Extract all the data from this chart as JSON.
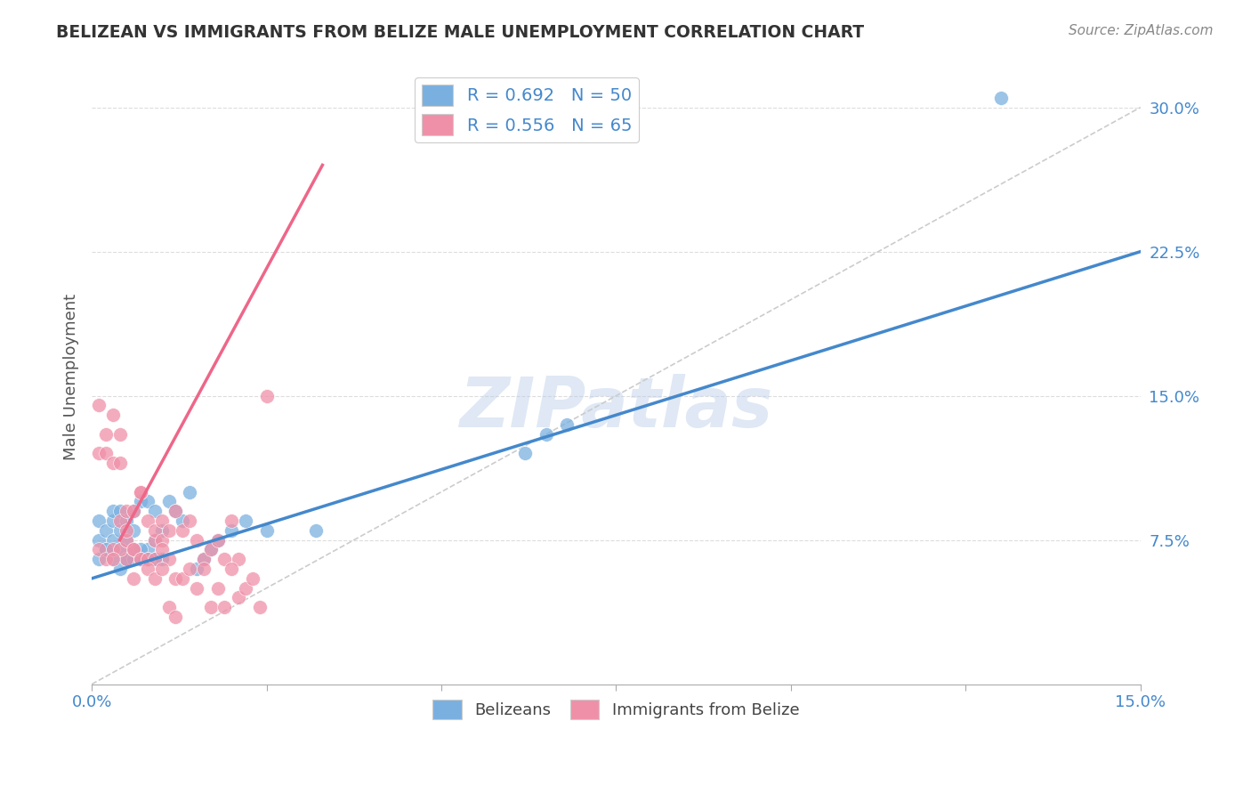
{
  "title": "BELIZEAN VS IMMIGRANTS FROM BELIZE MALE UNEMPLOYMENT CORRELATION CHART",
  "source": "Source: ZipAtlas.com",
  "ylabel": "Male Unemployment",
  "xlim": [
    0.0,
    0.15
  ],
  "ylim": [
    0.0,
    0.32
  ],
  "xtick_positions": [
    0.0,
    0.025,
    0.05,
    0.075,
    0.1,
    0.125,
    0.15
  ],
  "xtick_labels": [
    "0.0%",
    "",
    "",
    "",
    "",
    "",
    "15.0%"
  ],
  "ytick_positions": [
    0.075,
    0.15,
    0.225,
    0.3
  ],
  "ytick_labels": [
    "7.5%",
    "15.0%",
    "22.5%",
    "30.0%"
  ],
  "legend_entry_blue": "R = 0.692   N = 50",
  "legend_entry_pink": "R = 0.556   N = 65",
  "watermark": "ZIPatlas",
  "belizean_color": "#7ab0e0",
  "immigrant_color": "#f090a8",
  "belizean_line_color": "#4488cc",
  "immigrant_line_color": "#ee6688",
  "diagonal_color": "#cccccc",
  "grid_color": "#dddddd",
  "belizean_line_x0": 0.0,
  "belizean_line_y0": 0.055,
  "belizean_line_x1": 0.15,
  "belizean_line_y1": 0.225,
  "immigrant_line_x0": 0.004,
  "immigrant_line_y0": 0.075,
  "immigrant_line_x1": 0.033,
  "immigrant_line_y1": 0.27,
  "belizean_scatter_x": [
    0.001,
    0.001,
    0.002,
    0.002,
    0.003,
    0.003,
    0.003,
    0.004,
    0.004,
    0.004,
    0.005,
    0.005,
    0.005,
    0.006,
    0.006,
    0.006,
    0.007,
    0.007,
    0.008,
    0.008,
    0.009,
    0.009,
    0.009,
    0.01,
    0.011,
    0.012,
    0.013,
    0.014,
    0.015,
    0.016,
    0.017,
    0.018,
    0.02,
    0.022,
    0.025,
    0.032,
    0.062,
    0.065,
    0.068,
    0.001,
    0.002,
    0.003,
    0.004,
    0.005,
    0.006,
    0.007,
    0.008,
    0.009,
    0.01,
    0.13
  ],
  "belizean_scatter_y": [
    0.075,
    0.085,
    0.07,
    0.08,
    0.075,
    0.085,
    0.09,
    0.07,
    0.08,
    0.09,
    0.065,
    0.075,
    0.085,
    0.07,
    0.08,
    0.09,
    0.065,
    0.095,
    0.07,
    0.095,
    0.065,
    0.075,
    0.09,
    0.08,
    0.095,
    0.09,
    0.085,
    0.1,
    0.06,
    0.065,
    0.07,
    0.075,
    0.08,
    0.085,
    0.08,
    0.08,
    0.12,
    0.13,
    0.135,
    0.065,
    0.07,
    0.065,
    0.06,
    0.065,
    0.065,
    0.07,
    0.065,
    0.065,
    0.065,
    0.305
  ],
  "immigrant_scatter_x": [
    0.001,
    0.001,
    0.002,
    0.002,
    0.003,
    0.003,
    0.004,
    0.004,
    0.005,
    0.005,
    0.006,
    0.006,
    0.007,
    0.007,
    0.008,
    0.009,
    0.009,
    0.01,
    0.01,
    0.011,
    0.012,
    0.013,
    0.014,
    0.015,
    0.016,
    0.017,
    0.018,
    0.019,
    0.02,
    0.021,
    0.001,
    0.002,
    0.003,
    0.004,
    0.005,
    0.006,
    0.007,
    0.008,
    0.009,
    0.01,
    0.011,
    0.012,
    0.013,
    0.014,
    0.015,
    0.016,
    0.017,
    0.018,
    0.019,
    0.02,
    0.021,
    0.022,
    0.023,
    0.024,
    0.025,
    0.003,
    0.004,
    0.005,
    0.006,
    0.007,
    0.008,
    0.009,
    0.01,
    0.011,
    0.012
  ],
  "immigrant_scatter_y": [
    0.145,
    0.12,
    0.12,
    0.13,
    0.115,
    0.14,
    0.085,
    0.115,
    0.065,
    0.09,
    0.07,
    0.09,
    0.065,
    0.1,
    0.085,
    0.075,
    0.08,
    0.085,
    0.075,
    0.08,
    0.09,
    0.08,
    0.085,
    0.075,
    0.065,
    0.07,
    0.075,
    0.065,
    0.085,
    0.065,
    0.07,
    0.065,
    0.07,
    0.07,
    0.075,
    0.07,
    0.065,
    0.065,
    0.065,
    0.07,
    0.065,
    0.055,
    0.055,
    0.06,
    0.05,
    0.06,
    0.04,
    0.05,
    0.04,
    0.06,
    0.045,
    0.05,
    0.055,
    0.04,
    0.15,
    0.065,
    0.13,
    0.08,
    0.055,
    0.1,
    0.06,
    0.055,
    0.06,
    0.04,
    0.035
  ]
}
